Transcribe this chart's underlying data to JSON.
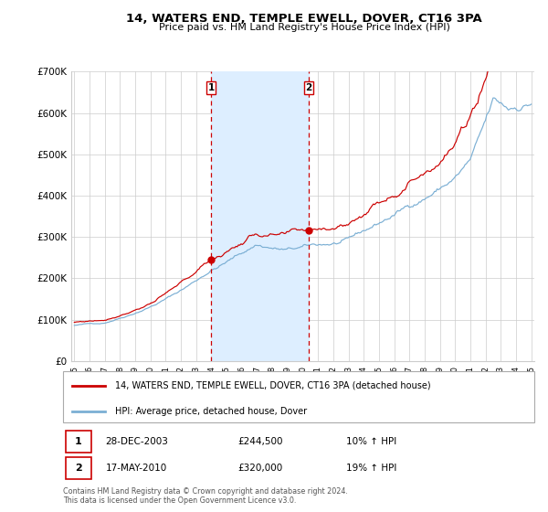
{
  "title": "14, WATERS END, TEMPLE EWELL, DOVER, CT16 3PA",
  "subtitle": "Price paid vs. HM Land Registry's House Price Index (HPI)",
  "legend_line1": "14, WATERS END, TEMPLE EWELL, DOVER, CT16 3PA (detached house)",
  "legend_line2": "HPI: Average price, detached house, Dover",
  "transaction1_date": "28-DEC-2003",
  "transaction1_price": 244500,
  "transaction1_hpi": "10% ↑ HPI",
  "transaction2_date": "17-MAY-2010",
  "transaction2_price": 320000,
  "transaction2_hpi": "19% ↑ HPI",
  "footer1": "Contains HM Land Registry data © Crown copyright and database right 2024.",
  "footer2": "This data is licensed under the Open Government Licence v3.0.",
  "red_color": "#cc0000",
  "blue_color": "#7bafd4",
  "shade_color": "#ddeeff",
  "grid_color": "#cccccc",
  "bg_color": "#ffffff",
  "ylim": [
    0,
    700000
  ],
  "yticks": [
    0,
    100000,
    200000,
    300000,
    400000,
    500000,
    600000,
    700000
  ],
  "ytick_labels": [
    "£0",
    "£100K",
    "£200K",
    "£300K",
    "£400K",
    "£500K",
    "£600K",
    "£700K"
  ],
  "start_year": 1995,
  "end_year": 2025,
  "transaction1_year": 2003.99,
  "transaction2_year": 2010.38
}
